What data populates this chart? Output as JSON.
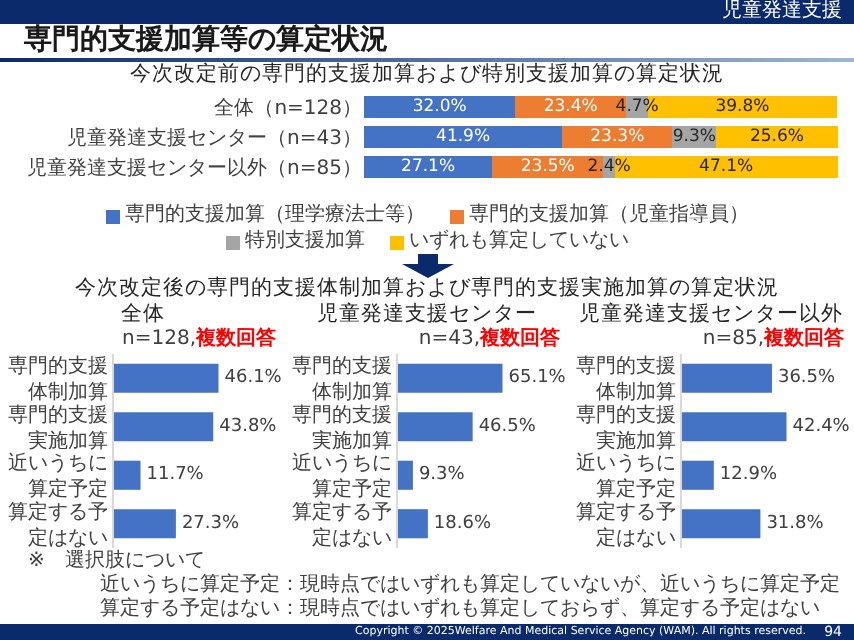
{
  "chart_data": [
    {
      "type": "bar",
      "orientation": "horizontal",
      "stacked": true,
      "title": "専門的支援加算等の算定状況",
      "subtitle": "今次改定前の専門的支援加算および特別支援加算の算定状況",
      "categories": [
        "全体（n=128）",
        "児童発達支援センター（n=43）",
        "児童発達支援センター以外（n=85）"
      ],
      "series": [
        {
          "name": "専門的支援加算（理学療法士等）",
          "color": "#4472c4",
          "values": [
            32.0,
            41.9,
            27.1
          ],
          "value_labels": [
            "32.0%",
            "41.9%",
            "27.1%"
          ]
        },
        {
          "name": "専門的支援加算（児童指導員）",
          "color": "#ed7d31",
          "values": [
            23.4,
            23.3,
            23.5
          ],
          "value_labels": [
            "23.4%",
            "23.3%",
            "23.5%"
          ]
        },
        {
          "name": "特別支援加算",
          "color": "#a5a5a5",
          "values": [
            4.7,
            9.3,
            2.4
          ],
          "value_labels": [
            "4.7%",
            "9.3%",
            "2.4%"
          ]
        },
        {
          "name": "いずれも算定していない",
          "color": "#ffc000",
          "values": [
            39.8,
            25.6,
            47.1
          ],
          "value_labels": [
            "39.8%",
            "25.6%",
            "47.1%"
          ]
        }
      ],
      "xlim": [
        0,
        100.2
      ],
      "tick_labels": "y",
      "legend": "bottom",
      "annotations": [
        "児童発達支援"
      ]
    },
    {
      "type": "bar",
      "orientation": "horizontal",
      "title": "今次改定後の専門的支援体制加算および専門的支援実施加算の算定状況",
      "subtitle": "全体",
      "categories": [
        "専門的支援体制加算",
        "専門的支援実施加算",
        "近いうちに算定予定",
        "算定する予定はない"
      ],
      "values": [
        46.1,
        43.8,
        11.7,
        27.3
      ],
      "value_labels": [
        "46.1%",
        "43.8%",
        "11.7%",
        "27.3%"
      ],
      "color": "#4472c4",
      "tick_labels": "y",
      "annotations": [
        "n=128,",
        "複数回答"
      ]
    },
    {
      "type": "bar",
      "orientation": "horizontal",
      "title": "児童発達支援センター",
      "categories": [
        "専門的支援体制加算",
        "専門的支援実施加算",
        "近いうちに算定予定",
        "算定する予定はない"
      ],
      "values": [
        65.1,
        46.5,
        9.3,
        18.6
      ],
      "value_labels": [
        "65.1%",
        "46.5%",
        "9.3%",
        "18.6%"
      ],
      "color": "#4472c4",
      "tick_labels": "y",
      "annotations": [
        "n=43,",
        "複数回答"
      ]
    },
    {
      "type": "bar",
      "orientation": "horizontal",
      "title": "児童発達支援センター以外",
      "categories": [
        "専門的支援体制加算",
        "専門的支援実施加算",
        "近いうちに算定予定",
        "算定する予定はない"
      ],
      "values": [
        36.5,
        42.4,
        12.9,
        31.8
      ],
      "value_labels": [
        "36.5%",
        "42.4%",
        "12.9%",
        "31.8%"
      ],
      "color": "#4472c4",
      "tick_labels": "y",
      "annotations": [
        "n=85,",
        "複数回答",
        "※　選択肢について",
        "近いうちに算定予定：現時点ではいずれも算定していないが、近いうちに算定予定",
        "算定する予定はない：現時点ではいずれも算定しておらず、算定する予定はない",
        "Copyright © 2025Welfare And Medical Service Agency (WAM). All rights reserved.",
        "94"
      ]
    }
  ]
}
